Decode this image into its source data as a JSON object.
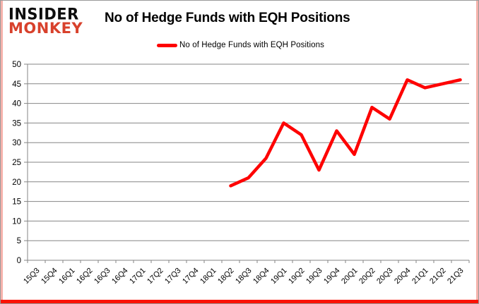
{
  "logo": {
    "line1": "INSIDER",
    "line2": "MONKEY"
  },
  "header": {
    "title": "No of Hedge Funds with EQH Positions"
  },
  "legend": {
    "label": "No of Hedge Funds with EQH Positions"
  },
  "colors": {
    "line": "#fe0000",
    "grid": "#868686",
    "axis": "#868686",
    "text": "#000000",
    "logo_black": "#0d0d0d",
    "logo_red": "#d8412c",
    "border_bottom_red": "#fa1205",
    "border_side_pink": "#f5b2ab"
  },
  "chart_data": {
    "type": "line",
    "title": "No of Hedge Funds with EQH Positions",
    "xlabel": "",
    "ylabel": "",
    "ylim": [
      0,
      50
    ],
    "ytick_step": 5,
    "grid": true,
    "legend_position": "top",
    "categories": [
      "15Q3",
      "15Q4",
      "16Q1",
      "16Q2",
      "16Q3",
      "16Q4",
      "17Q1",
      "17Q2",
      "17Q3",
      "17Q4",
      "18Q1",
      "18Q2",
      "18Q3",
      "18Q4",
      "19Q1",
      "19Q2",
      "19Q3",
      "19Q4",
      "20Q1",
      "20Q2",
      "20Q3",
      "20Q4",
      "21Q1",
      "21Q2",
      "21Q3"
    ],
    "series": [
      {
        "name": "No of Hedge Funds with EQH Positions",
        "color": "#fe0000",
        "values": [
          null,
          null,
          null,
          null,
          null,
          null,
          null,
          null,
          null,
          null,
          null,
          19,
          21,
          26,
          35,
          32,
          23,
          33,
          27,
          39,
          36,
          46,
          44,
          45,
          46
        ]
      }
    ]
  }
}
